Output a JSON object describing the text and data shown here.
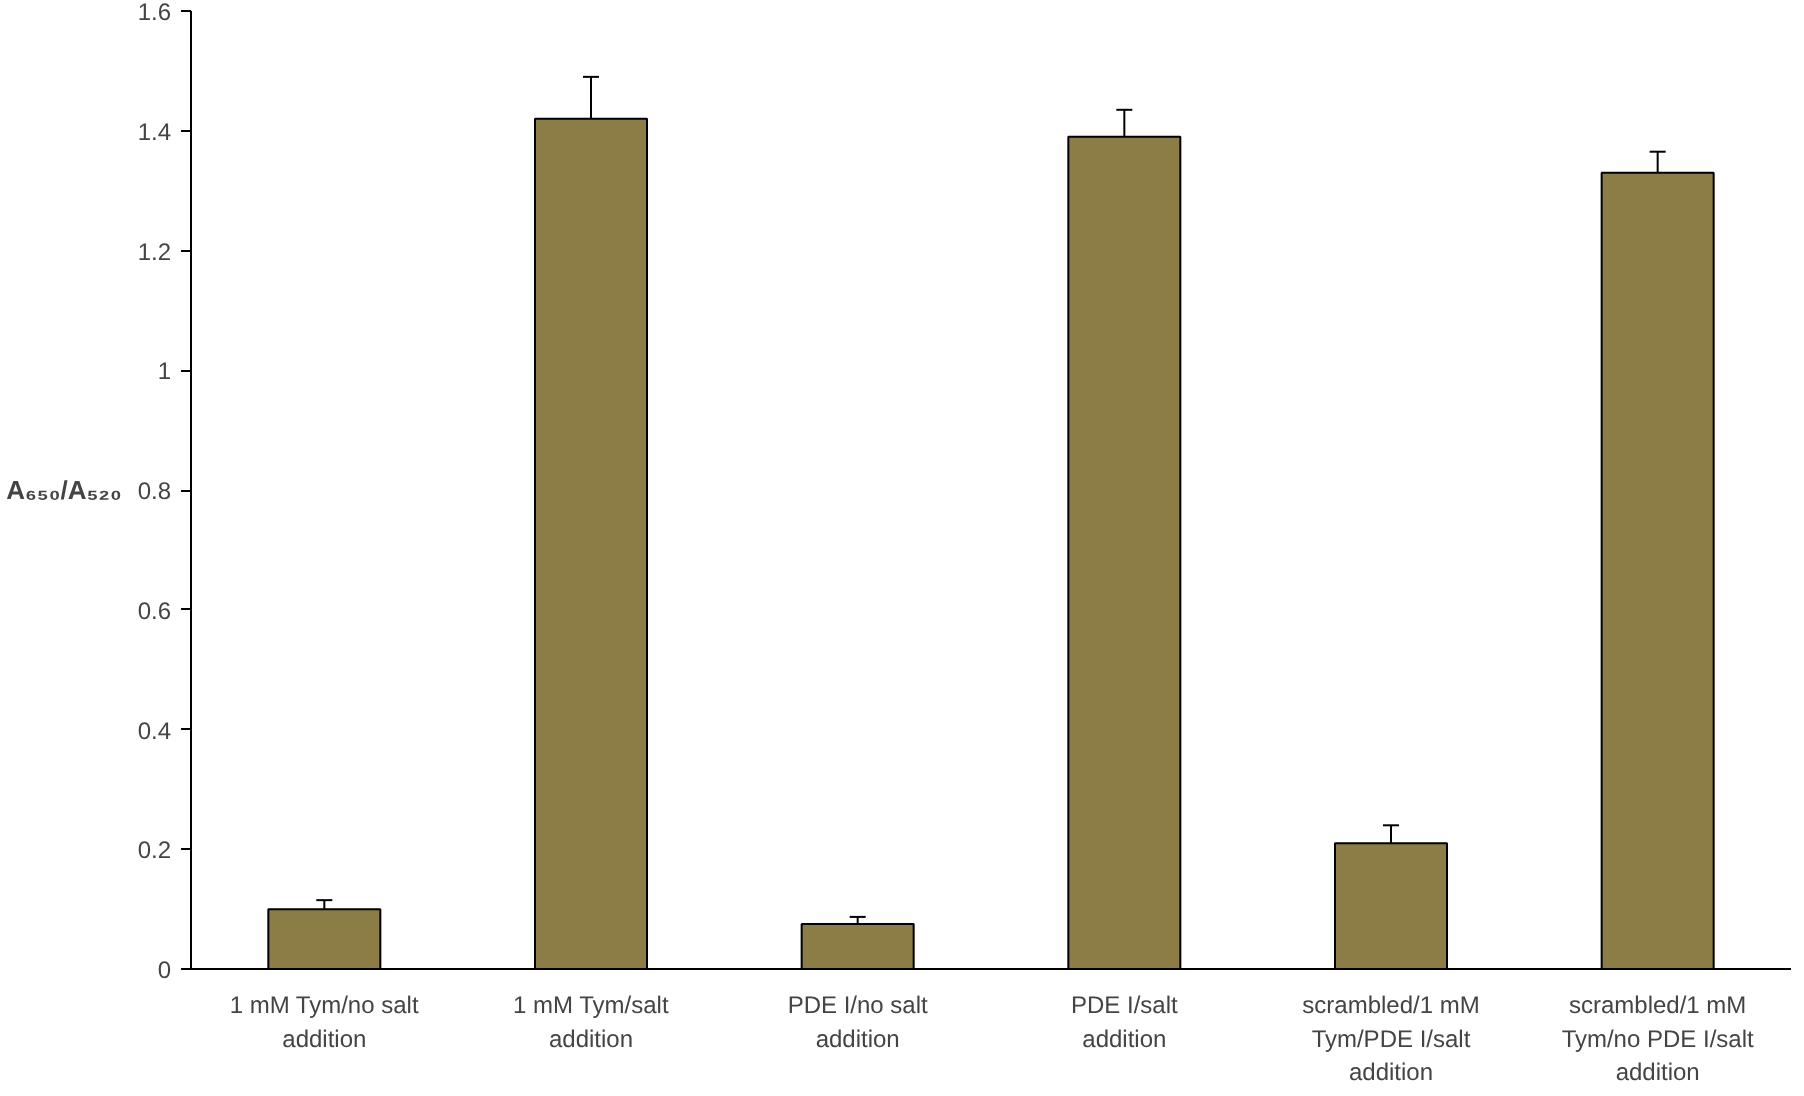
{
  "chart_data": {
    "type": "bar",
    "ylabel": "A₆₅₀/A₅₂₀",
    "categories": [
      "1 mM Tym/no salt addition",
      "1 mM Tym/salt addition",
      "PDE I/no salt addition",
      "PDE I/salt addition",
      "scrambled/1 mM Tym/PDE I/salt addition",
      "scrambled/1 mM Tym/no PDE I/salt addition"
    ],
    "values": [
      0.1,
      1.42,
      0.075,
      1.39,
      0.21,
      1.33
    ],
    "errors": [
      0.015,
      0.07,
      0.012,
      0.045,
      0.03,
      0.035
    ],
    "color": "#8b7d45",
    "ylim": [
      0,
      1.6
    ],
    "yticks": [
      0,
      0.2,
      0.4,
      0.6,
      0.8,
      1,
      1.2,
      1.4,
      1.6
    ],
    "grid": false
  }
}
